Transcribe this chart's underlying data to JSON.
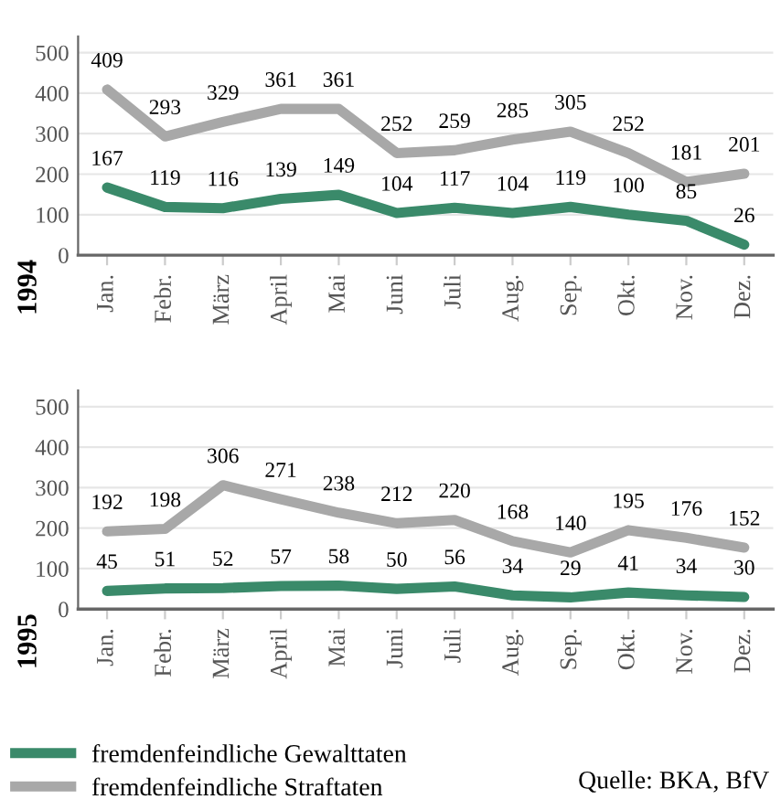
{
  "chart_data": [
    {
      "type": "line",
      "title": "1994",
      "categories": [
        "Jan.",
        "Febr.",
        "März",
        "April",
        "Mai",
        "Juni",
        "Juli",
        "Aug.",
        "Sep.",
        "Okt.",
        "Nov.",
        "Dez."
      ],
      "ylim": [
        0,
        540
      ],
      "yticks": [
        0,
        100,
        200,
        300,
        400,
        500
      ],
      "grid": "y",
      "legend": false,
      "data_labels": true,
      "marker": "none",
      "line_style": "solid",
      "series": [
        {
          "color": "#3a8a6a",
          "values": [
            167,
            119,
            116,
            139,
            149,
            104,
            117,
            104,
            119,
            100,
            85,
            26
          ]
        },
        {
          "color": "#a8a8a8",
          "values": [
            409,
            293,
            329,
            361,
            361,
            252,
            259,
            285,
            305,
            252,
            181,
            201
          ]
        }
      ]
    },
    {
      "type": "line",
      "title": "1995",
      "categories": [
        "Jan.",
        "Febr.",
        "März",
        "April",
        "Mai",
        "Juni",
        "Juli",
        "Aug.",
        "Sep.",
        "Okt.",
        "Nov.",
        "Dez."
      ],
      "ylim": [
        0,
        540
      ],
      "yticks": [
        0,
        100,
        200,
        300,
        400,
        500
      ],
      "grid": "y",
      "legend": "bottom",
      "data_labels": true,
      "marker": "none",
      "line_style": "solid",
      "annotations": [
        "Quelle: BKA, BfV"
      ],
      "series": [
        {
          "name": "fremdenfeindliche Gewalttaten",
          "color": "#3a8a6a",
          "values": [
            45,
            51,
            52,
            57,
            58,
            50,
            56,
            34,
            29,
            41,
            34,
            30
          ]
        },
        {
          "name": "fremdenfeindliche Straftaten",
          "color": "#a8a8a8",
          "values": [
            192,
            198,
            306,
            271,
            238,
            212,
            220,
            168,
            140,
            195,
            176,
            152
          ]
        }
      ]
    }
  ]
}
